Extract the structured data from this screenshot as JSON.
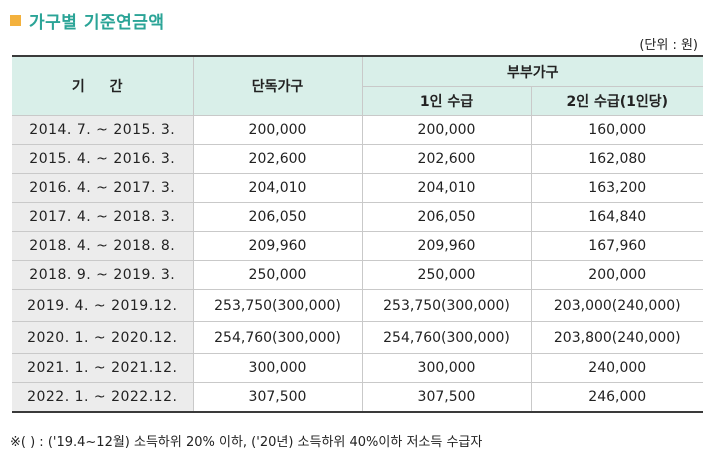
{
  "title": "가구별 기준연금액",
  "unit_note": "(단위 : 원)",
  "accent_colors": {
    "title": "#2ba497",
    "square": "#f3b13d",
    "header_bg": "#d9efe9",
    "period_bg": "#ececec"
  },
  "table": {
    "headers": {
      "period": "기 간",
      "single": "단독가구",
      "couple": "부부가구",
      "couple_one": "1인 수급",
      "couple_two": "2인 수급(1인당)"
    },
    "rows": [
      {
        "period": "2014. 7. ~ 2015. 3.",
        "single": "200,000",
        "couple_one": "200,000",
        "couple_two": "160,000"
      },
      {
        "period": "2015. 4. ~ 2016. 3.",
        "single": "202,600",
        "couple_one": "202,600",
        "couple_two": "162,080"
      },
      {
        "period": "2016. 4. ~ 2017. 3.",
        "single": "204,010",
        "couple_one": "204,010",
        "couple_two": "163,200"
      },
      {
        "period": "2017. 4. ~ 2018. 3.",
        "single": "206,050",
        "couple_one": "206,050",
        "couple_two": "164,840"
      },
      {
        "period": "2018. 4. ~ 2018. 8.",
        "single": "209,960",
        "couple_one": "209,960",
        "couple_two": "167,960"
      },
      {
        "period": "2018. 9. ~ 2019. 3.",
        "single": "250,000",
        "couple_one": "250,000",
        "couple_two": "200,000"
      },
      {
        "period": "2019. 4. ~ 2019.12.",
        "single": "253,750(300,000)",
        "couple_one": "253,750(300,000)",
        "couple_two": "203,000(240,000)"
      },
      {
        "period": "2020. 1. ~ 2020.12.",
        "single": "254,760(300,000)",
        "couple_one": "254,760(300,000)",
        "couple_two": "203,800(240,000)"
      },
      {
        "period": "2021. 1. ~ 2021.12.",
        "single": "300,000",
        "couple_one": "300,000",
        "couple_two": "240,000"
      },
      {
        "period": "2022. 1. ~ 2022.12.",
        "single": "307,500",
        "couple_one": "307,500",
        "couple_two": "246,000"
      }
    ]
  },
  "footnote": "※( ) : ('19.4~12월) 소득하위 20% 이하, ('20년) 소득하위 40%이하 저소득 수급자"
}
